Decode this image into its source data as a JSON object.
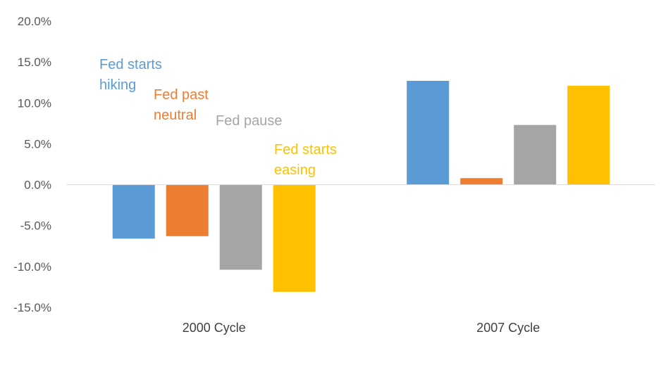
{
  "chart_data": {
    "type": "bar",
    "categories": [
      "2000 Cycle",
      "2007 Cycle"
    ],
    "series": [
      {
        "name": "Fed starts hiking",
        "color": "#5B9BD5",
        "values": [
          -6.6,
          12.7
        ]
      },
      {
        "name": "Fed past neutral",
        "color": "#ED7D31",
        "values": [
          -6.3,
          0.8
        ]
      },
      {
        "name": "Fed pause",
        "color": "#A5A5A5",
        "values": [
          -10.4,
          7.3
        ]
      },
      {
        "name": "Fed starts easing",
        "color": "#FFC000",
        "values": [
          -13.1,
          12.1
        ]
      }
    ],
    "ylim": [
      -15,
      20
    ],
    "yticks": [
      "20.0%",
      "15.0%",
      "10.0%",
      "5.0%",
      "0.0%",
      "-5.0%",
      "-10.0%",
      "-15.0%"
    ],
    "ytick_values": [
      20,
      15,
      10,
      5,
      0,
      -5,
      -10,
      -15
    ],
    "annotations": [
      {
        "lines": [
          "Fed starts",
          "hiking"
        ],
        "color": "#5B9BD5"
      },
      {
        "lines": [
          "Fed past",
          "neutral"
        ],
        "color": "#ED7D31"
      },
      {
        "lines": [
          "Fed pause"
        ],
        "color": "#A5A5A5"
      },
      {
        "lines": [
          "Fed starts",
          "easing"
        ],
        "color": "#FFC000"
      }
    ],
    "grid": false,
    "legend": "none"
  }
}
